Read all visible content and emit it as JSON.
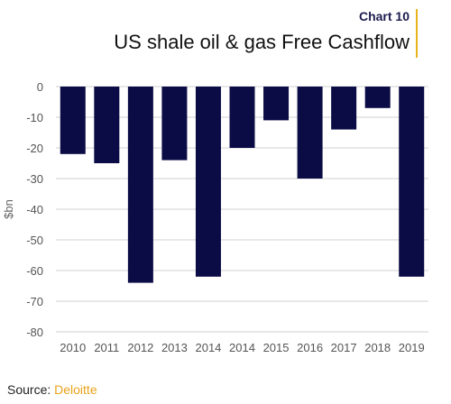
{
  "header": {
    "chart_number": "Chart 10",
    "title": "US shale oil & gas Free Cashflow"
  },
  "footer": {
    "source_label": "Source:",
    "source_name": "Deloitte"
  },
  "colors": {
    "bar": "#0b0b45",
    "accent": "#e8b218",
    "grid": "#d0d0d0",
    "source_name": "#e8a21b"
  },
  "chart_data": {
    "type": "bar",
    "categories": [
      "2010",
      "2011",
      "2012",
      "2013",
      "2014",
      "2014",
      "2015",
      "2016",
      "2017",
      "2018",
      "2019"
    ],
    "values": [
      -22,
      -25,
      -64,
      -24,
      -62,
      -20,
      -11,
      -30,
      -14,
      -7,
      -62
    ],
    "title": "US shale oil & gas Free Cashflow",
    "xlabel": "",
    "ylabel": "$bn",
    "ylim": [
      -80,
      0
    ],
    "yticks": [
      0,
      -10,
      -20,
      -30,
      -40,
      -50,
      -60,
      -70,
      -80
    ],
    "grid": true,
    "legend": "none"
  }
}
